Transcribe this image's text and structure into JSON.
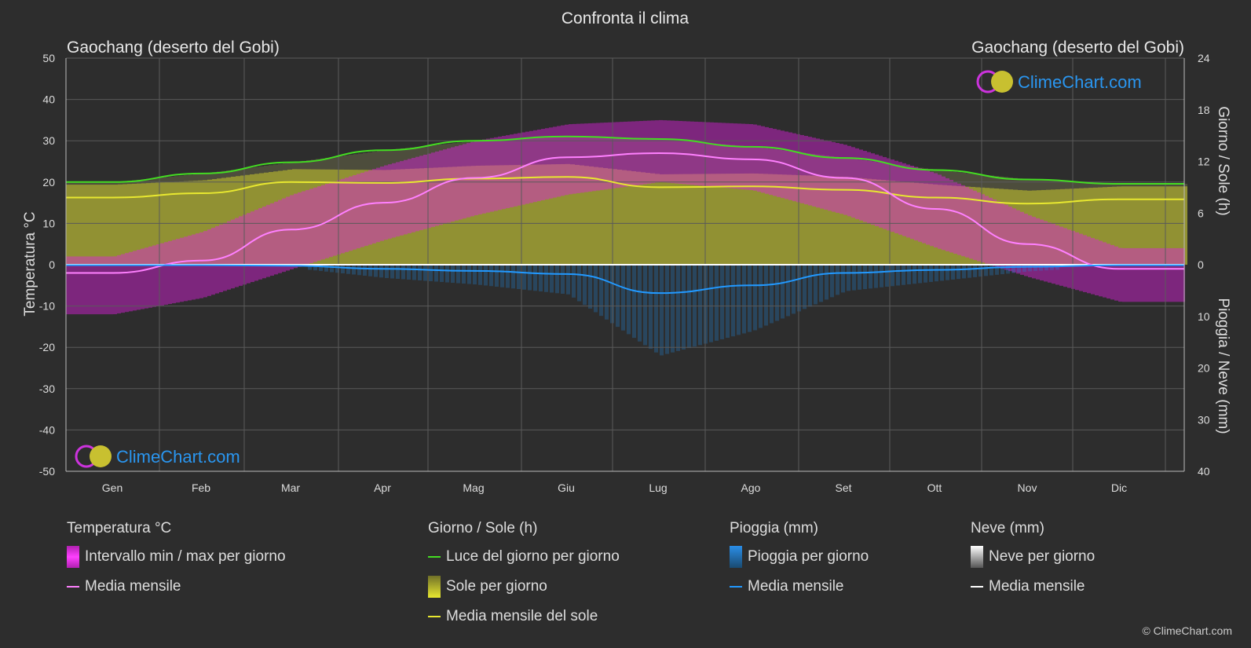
{
  "title": "Confronta il clima",
  "location_left": "Gaochang (deserto del Gobi)",
  "location_right": "Gaochang (deserto del Gobi)",
  "watermark": "ClimeChart.com",
  "copyright": "© ClimeChart.com",
  "colors": {
    "background": "#2d2d2d",
    "temp_range": "#e020e0",
    "temp_mean": "#ff80ff",
    "daylight": "#44dd22",
    "sun_fill": "#a8a830",
    "sun_mean": "#e8e830",
    "rain": "#2288dd",
    "rain_mean": "#2299ff",
    "snow": "#bbbbbb",
    "snow_mean": "#ffffff",
    "brand": "#1e90ff"
  },
  "legend": {
    "temp": {
      "title": "Temperatura °C",
      "range": "Intervallo min / max per giorno",
      "mean": "Media mensile"
    },
    "sun": {
      "title": "Giorno / Sole (h)",
      "daylight": "Luce del giorno per giorno",
      "sun": "Sole per giorno",
      "mean": "Media mensile del sole"
    },
    "rain": {
      "title": "Pioggia (mm)",
      "rain": "Pioggia per giorno",
      "mean": "Media mensile"
    },
    "snow": {
      "title": "Neve (mm)",
      "snow": "Neve per giorno",
      "mean": "Media mensile"
    }
  },
  "chart_data": {
    "type": "area",
    "title": "Confronta il clima",
    "categories": [
      "Gen",
      "Feb",
      "Mar",
      "Apr",
      "Mag",
      "Giu",
      "Lug",
      "Ago",
      "Set",
      "Ott",
      "Nov",
      "Dic"
    ],
    "y_left": {
      "label": "Temperatura °C",
      "range": [
        -50,
        50
      ],
      "ticks": [
        50,
        40,
        30,
        20,
        10,
        0,
        -10,
        -20,
        -30,
        -40,
        -50
      ]
    },
    "y_right_top": {
      "label": "Giorno / Sole (h)",
      "range": [
        0,
        24
      ],
      "ticks": [
        24,
        18,
        12,
        6,
        0
      ]
    },
    "y_right_bottom": {
      "label": "Pioggia / Neve (mm)",
      "range": [
        0,
        40
      ],
      "ticks": [
        0,
        10,
        20,
        30,
        40
      ]
    },
    "grid": true,
    "series": [
      {
        "name": "Media mensile",
        "axis": "temperature",
        "values": [
          -2,
          1,
          8.5,
          15,
          21,
          26,
          27,
          25.5,
          21,
          13.5,
          5,
          -1
        ]
      },
      {
        "name": "Luce del giorno per giorno",
        "axis": "hours",
        "values": [
          9.6,
          10.6,
          11.9,
          13.3,
          14.4,
          14.9,
          14.6,
          13.7,
          12.4,
          11.0,
          9.9,
          9.4
        ]
      },
      {
        "name": "Media mensile del sole",
        "axis": "hours",
        "values": [
          7.8,
          8.3,
          9.6,
          9.5,
          10.0,
          10.2,
          9.0,
          9.1,
          8.7,
          7.8,
          7.1,
          7.6
        ]
      },
      {
        "name": "Media mensile",
        "axis": "precipitation",
        "values": [
          0.1,
          0.1,
          0.2,
          0.8,
          1.2,
          1.8,
          5.5,
          4.0,
          1.6,
          1.0,
          0.4,
          0.1
        ]
      },
      {
        "name": "Media mensile",
        "axis": "snow",
        "values": [
          0,
          0,
          0,
          0,
          0,
          0,
          0,
          0,
          0,
          0,
          0,
          0
        ]
      }
    ],
    "temp_min_daily": [
      -12,
      -8,
      -1,
      6,
      12,
      17,
      20,
      18,
      12,
      4,
      -3,
      -9
    ],
    "temp_max_daily": [
      2,
      8,
      17,
      24,
      30,
      34,
      35,
      34,
      29,
      22,
      12,
      4
    ]
  }
}
